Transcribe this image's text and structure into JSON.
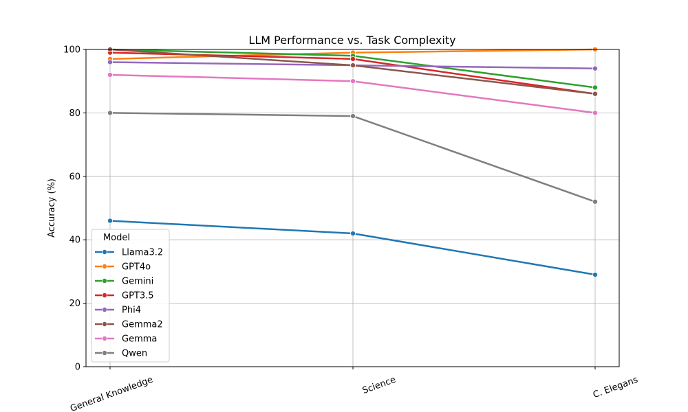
{
  "chart_data": {
    "type": "line",
    "title": "LLM Performance vs. Task Complexity",
    "xlabel": "",
    "ylabel": "Accuracy (%)",
    "categories": [
      "General Knowledge",
      "Science",
      "C. Elegans"
    ],
    "ylim": [
      0,
      100
    ],
    "yticks": [
      0,
      20,
      40,
      60,
      80,
      100
    ],
    "grid": true,
    "legend": {
      "title": "Model",
      "position": "lower-left"
    },
    "series": [
      {
        "name": "Llama3.2",
        "color": "#1f77b4",
        "values": [
          46,
          42,
          29
        ]
      },
      {
        "name": "GPT4o",
        "color": "#ff7f0e",
        "values": [
          97,
          99,
          100
        ]
      },
      {
        "name": "Gemini",
        "color": "#2ca02c",
        "values": [
          100,
          98,
          88
        ]
      },
      {
        "name": "GPT3.5",
        "color": "#d62728",
        "values": [
          99,
          97,
          86
        ]
      },
      {
        "name": "Phi4",
        "color": "#9467bd",
        "values": [
          96,
          95,
          94
        ]
      },
      {
        "name": "Gemma2",
        "color": "#8c564b",
        "values": [
          100,
          95,
          86
        ]
      },
      {
        "name": "Gemma",
        "color": "#e377c2",
        "values": [
          92,
          90,
          80
        ]
      },
      {
        "name": "Qwen",
        "color": "#7f7f7f",
        "values": [
          80,
          79,
          52
        ]
      }
    ]
  }
}
